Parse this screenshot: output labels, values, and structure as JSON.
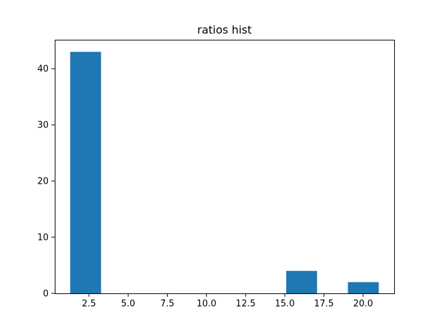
{
  "chart_data": {
    "type": "bar",
    "title": "ratios hist",
    "xlabel": "",
    "ylabel": "",
    "bins": [
      {
        "start": 1.3,
        "end": 3.27,
        "count": 43
      },
      {
        "start": 3.27,
        "end": 5.24,
        "count": 0
      },
      {
        "start": 5.24,
        "end": 7.21,
        "count": 0
      },
      {
        "start": 7.21,
        "end": 9.18,
        "count": 0
      },
      {
        "start": 9.18,
        "end": 11.15,
        "count": 0
      },
      {
        "start": 11.15,
        "end": 13.12,
        "count": 0
      },
      {
        "start": 13.12,
        "end": 15.09,
        "count": 0
      },
      {
        "start": 15.09,
        "end": 17.06,
        "count": 4
      },
      {
        "start": 17.06,
        "end": 19.03,
        "count": 0
      },
      {
        "start": 19.03,
        "end": 21.0,
        "count": 2
      }
    ],
    "xlim": [
      0.315,
      21.985
    ],
    "ylim": [
      0,
      45.15
    ],
    "xticks": [
      {
        "value": 2.5,
        "label": "2.5"
      },
      {
        "value": 5.0,
        "label": "5.0"
      },
      {
        "value": 7.5,
        "label": "7.5"
      },
      {
        "value": 10.0,
        "label": "10.0"
      },
      {
        "value": 12.5,
        "label": "12.5"
      },
      {
        "value": 15.0,
        "label": "15.0"
      },
      {
        "value": 17.5,
        "label": "17.5"
      },
      {
        "value": 20.0,
        "label": "20.0"
      }
    ],
    "yticks": [
      {
        "value": 0,
        "label": "0"
      },
      {
        "value": 10,
        "label": "10"
      },
      {
        "value": 20,
        "label": "20"
      },
      {
        "value": 30,
        "label": "30"
      },
      {
        "value": 40,
        "label": "40"
      }
    ],
    "grid": false,
    "bar_color": "#1f77b4"
  }
}
